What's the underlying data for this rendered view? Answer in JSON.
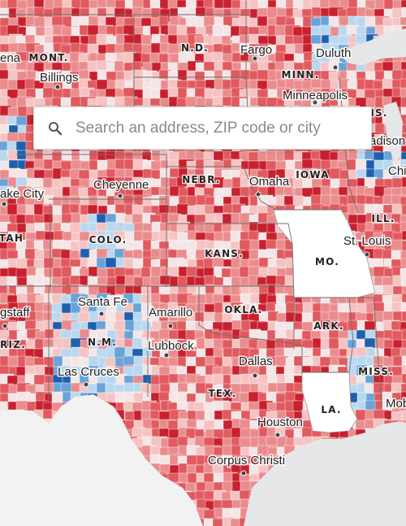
{
  "search": {
    "placeholder": "Search an address, ZIP code or city",
    "value": ""
  },
  "legend_colors": {
    "dark_red": "#c8202e",
    "red": "#e05a5f",
    "mid_red": "#ea8c8d",
    "light_red": "#f6c3c3",
    "pale": "#f4e6e6",
    "light_blue": "#b9d8f0",
    "blue": "#6aa3d8",
    "dark_blue": "#1f5fae",
    "no_data": "#ffffff",
    "outside": "#e8e8e8"
  },
  "states": [
    {
      "id": "mont",
      "label": "MONT."
    },
    {
      "id": "nd",
      "label": "N.D."
    },
    {
      "id": "minn",
      "label": "MINN."
    },
    {
      "id": "wis",
      "label": "IS."
    },
    {
      "id": "nebr",
      "label": "NEBR."
    },
    {
      "id": "iowa",
      "label": "IOWA"
    },
    {
      "id": "ill",
      "label": "ILL."
    },
    {
      "id": "utah",
      "label": "TAH"
    },
    {
      "id": "colo",
      "label": "COLO."
    },
    {
      "id": "kans",
      "label": "KANS."
    },
    {
      "id": "mo",
      "label": "MO."
    },
    {
      "id": "ariz",
      "label": "RIZ."
    },
    {
      "id": "nm",
      "label": "N.M."
    },
    {
      "id": "okla",
      "label": "OKLA."
    },
    {
      "id": "ark",
      "label": "ARK."
    },
    {
      "id": "tex",
      "label": "TEX."
    },
    {
      "id": "miss",
      "label": "MISS."
    },
    {
      "id": "la",
      "label": "LA."
    }
  ],
  "cities": [
    {
      "id": "helena",
      "label": "ena"
    },
    {
      "id": "billings",
      "label": "Billings"
    },
    {
      "id": "fargo",
      "label": "Fargo"
    },
    {
      "id": "duluth",
      "label": "Duluth"
    },
    {
      "id": "minneapolis",
      "label": "Minneapolis"
    },
    {
      "id": "madison",
      "label": "adison"
    },
    {
      "id": "chicago",
      "label": "Chi"
    },
    {
      "id": "cheyenne",
      "label": "Cheyenne"
    },
    {
      "id": "omaha",
      "label": "Omaha"
    },
    {
      "id": "slc",
      "label": "ake City"
    },
    {
      "id": "stlouis",
      "label": "St. Louis"
    },
    {
      "id": "santafe",
      "label": "Santa Fe"
    },
    {
      "id": "amarillo",
      "label": "Amarillo"
    },
    {
      "id": "flagstaff",
      "label": "gstaff"
    },
    {
      "id": "lubbock",
      "label": "Lubbock"
    },
    {
      "id": "dallas",
      "label": "Dallas"
    },
    {
      "id": "lascruces",
      "label": "Las Cruces"
    },
    {
      "id": "mobile",
      "label": "Mob"
    },
    {
      "id": "houston",
      "label": "Houston"
    },
    {
      "id": "corpus",
      "label": "Corpus Christi"
    }
  ]
}
